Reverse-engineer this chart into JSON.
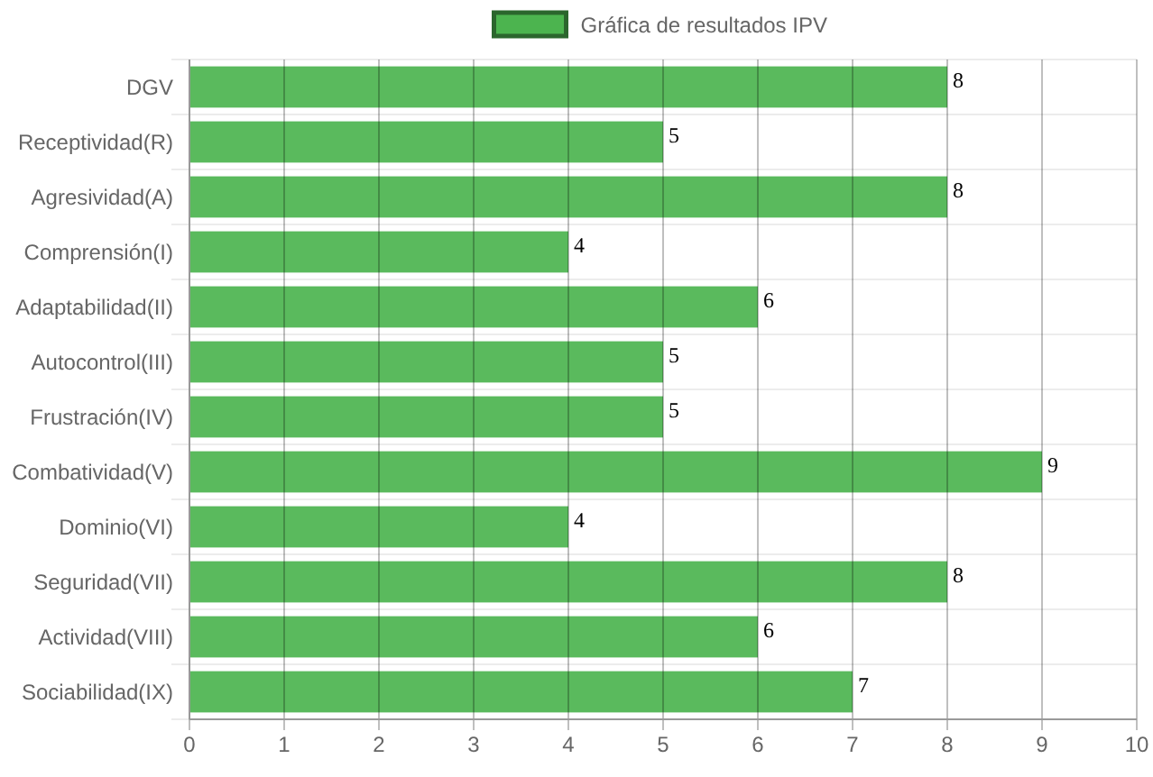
{
  "chart_data": {
    "type": "bar",
    "orientation": "horizontal",
    "categories": [
      "DGV",
      "Receptividad(R)",
      "Agresividad(A)",
      "Comprensión(I)",
      "Adaptabilidad(II)",
      "Autocontrol(III)",
      "Frustración(IV)",
      "Combatividad(V)",
      "Dominio(VI)",
      "Seguridad(VII)",
      "Actividad(VIII)",
      "Sociabilidad(IX)"
    ],
    "series": [
      {
        "name": "Gráfica de resultados IPV",
        "color": "#4cb44f",
        "values": [
          8,
          5,
          8,
          4,
          6,
          5,
          5,
          9,
          4,
          8,
          6,
          7
        ]
      }
    ],
    "xlim": [
      0,
      10
    ],
    "xticks": [
      0,
      1,
      2,
      3,
      4,
      5,
      6,
      7,
      8,
      9,
      10
    ],
    "grid": true,
    "legend": "top",
    "data_labels": true
  }
}
